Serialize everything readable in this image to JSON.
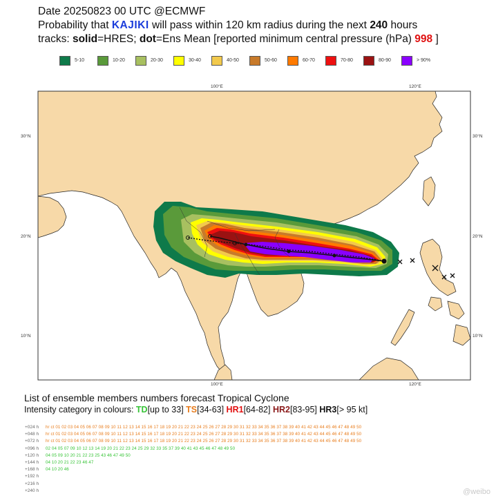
{
  "header": {
    "line1": "Date 20250823 00 UTC   @ECMWF",
    "line2_pre": "Probability that ",
    "storm_name": "KAJIKI",
    "line2_post": " will pass within 120 km radius during the next ",
    "hours": "240",
    "hours_unit": " hours",
    "line3_a": "tracks: ",
    "line3_solid": "solid",
    "line3_b": "=HRES; ",
    "line3_dot": "dot",
    "line3_c": "=Ens Mean [reported minimum central pressure (hPa) ",
    "pressure": "998",
    "line3_end": " ]"
  },
  "legend": [
    {
      "label": "5-10",
      "color": "#0e7a4a"
    },
    {
      "label": "10-20",
      "color": "#5a9a3a"
    },
    {
      "label": "20-30",
      "color": "#a8c060"
    },
    {
      "label": "30-40",
      "color": "#ffff00"
    },
    {
      "label": "40-50",
      "color": "#f2c94c"
    },
    {
      "label": "50-60",
      "color": "#c87a2a"
    },
    {
      "label": "60-70",
      "color": "#ff7a00"
    },
    {
      "label": "70-80",
      "color": "#ee1010"
    },
    {
      "label": "80-90",
      "color": "#9b1212"
    },
    {
      "label": "> 90%",
      "color": "#8a00ff"
    }
  ],
  "map": {
    "lon_ticks_top": [
      "100°E",
      "120°E"
    ],
    "lon_ticks_bottom": [
      "100°E",
      "120°E"
    ],
    "lat_ticks": [
      "30°N",
      "20°N",
      "10°N"
    ],
    "ocean_color": "#ffffff",
    "land_color": "#f7d9a8"
  },
  "ensemble": {
    "title": "List of ensemble members numbers forecast Tropical Cyclone",
    "intensity_prefix": "Intensity category in colours: ",
    "td": "TD",
    "td_range": "[up to 33] ",
    "ts": "TS",
    "ts_range": "[34-63] ",
    "hr1": "HR1",
    "hr1_range": "[64-82] ",
    "hr2": "HR2",
    "hr2_range": "[83-95] ",
    "hr3": "HR3",
    "hr3_range": "[> 95 kt]",
    "rows": [
      {
        "label": "+024 h",
        "text": "hr ct 01 02 03 04 05 06 07 08 09 10 11 12 13 14 15 16 17 18 19 20 21 22 23 24 25 26 27 28 29 30 31 32 33 34 35 36 37 38 39 40 41 42 43 44 45 46 47 48 49 50"
      },
      {
        "label": "+048 h",
        "text": "hr ct 01 02 03 04 05 06 07 08 09 10 11 12 13 14 15 16 17 18 19 20 21 22 23 24 25 26 27 28 29 30 31 32 33 34 35 36 37 38 39 40 41 42 43 44 45 46 47 48 49 50"
      },
      {
        "label": "+072 h",
        "text": "hr ct 01 02 03 04 05 06 07 08 09 10 11 12 13 14 15 16 17 18 19 20 21 22 23 24 25 26 27 28 29 30 31 32 33 34 35 36 37 38 39 40 41 42 43 44 45 46 47 48 49 50"
      },
      {
        "label": "+096 h",
        "text": "02 04 05 07 09 10 12 13 14 19 20 21 22 23 24 25 29 32 33 35 37 39 40 41 43 45 46 47 48 49 50"
      },
      {
        "label": "+120 h",
        "text": "04 05 09 10 20 21 22 23 25 43 46 47 49 50"
      },
      {
        "label": "+144 h",
        "text": "04 10 20 21 22 23 46 47"
      },
      {
        "label": "+168 h",
        "text": "04 10 20 46"
      },
      {
        "label": "+192 h",
        "text": ""
      },
      {
        "label": "+216 h",
        "text": ""
      },
      {
        "label": "+240 h",
        "text": ""
      }
    ]
  },
  "watermark": "@weibo"
}
